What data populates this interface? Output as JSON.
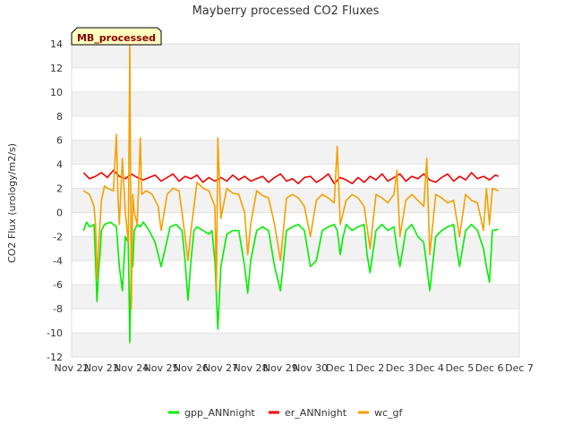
{
  "chart_data": {
    "type": "line",
    "title": "Mayberry processed CO2 Fluxes",
    "ylabel": "CO2 Flux (urology/m2/s)",
    "xlabel": "",
    "badge": "MB_processed",
    "ylim": [
      -12,
      14
    ],
    "yticks": [
      -12,
      -10,
      -8,
      -6,
      -4,
      -2,
      0,
      2,
      4,
      6,
      8,
      10,
      12,
      14
    ],
    "xlim": [
      0,
      15
    ],
    "xticks": [
      "Nov 22",
      "Nov 23",
      "Nov 24",
      "Nov 25",
      "Nov 26",
      "Nov 27",
      "Nov 28",
      "Nov 29",
      "Nov 30",
      "Dec 1",
      "Dec 2",
      "Dec 3",
      "Dec 4",
      "Dec 5",
      "Dec 6",
      "Dec 7"
    ],
    "x_units": "days since Nov 22",
    "grid": "horizontal bands",
    "legend_position": "bottom-center",
    "series": [
      {
        "name": "gpp_ANNnight",
        "color": "#00ee00",
        "x": [
          0.4,
          0.5,
          0.6,
          0.75,
          0.8,
          0.85,
          0.9,
          0.95,
          1.0,
          1.1,
          1.3,
          1.5,
          1.6,
          1.7,
          1.8,
          1.9,
          1.95,
          2.0,
          2.05,
          2.1,
          2.2,
          2.3,
          2.4,
          2.6,
          2.8,
          3.0,
          3.3,
          3.5,
          3.7,
          3.8,
          3.9,
          4.0,
          4.1,
          4.2,
          4.4,
          4.6,
          4.7,
          4.8,
          4.9,
          5.0,
          5.2,
          5.4,
          5.6,
          5.8,
          5.9,
          6.0,
          6.2,
          6.4,
          6.6,
          6.8,
          7.0,
          7.2,
          7.4,
          7.6,
          7.8,
          8.0,
          8.2,
          8.4,
          8.6,
          8.8,
          8.9,
          9.0,
          9.1,
          9.2,
          9.4,
          9.6,
          9.8,
          9.9,
          10.0,
          10.2,
          10.4,
          10.6,
          10.8,
          10.9,
          11.0,
          11.2,
          11.4,
          11.6,
          11.8,
          11.9,
          12.0,
          12.2,
          12.4,
          12.6,
          12.8,
          12.9,
          13.0,
          13.2,
          13.4,
          13.6,
          13.8,
          13.9,
          14.0,
          14.1,
          14.3
        ],
        "y": [
          -1.5,
          -0.8,
          -1.2,
          -1.0,
          -4.0,
          -7.4,
          -5.0,
          -3.5,
          -1.5,
          -1.0,
          -0.8,
          -1.2,
          -4.5,
          -6.5,
          -2.0,
          -2.5,
          -10.8,
          -3.5,
          -4.5,
          -1.5,
          -1.0,
          -1.2,
          -0.8,
          -1.5,
          -2.5,
          -4.5,
          -1.2,
          -1.0,
          -1.5,
          -4.0,
          -7.3,
          -4.0,
          -1.5,
          -1.2,
          -1.5,
          -1.8,
          -1.5,
          -4.0,
          -9.7,
          -4.5,
          -1.8,
          -1.5,
          -1.5,
          -4.5,
          -6.7,
          -4.0,
          -1.5,
          -1.2,
          -1.5,
          -4.5,
          -6.5,
          -1.5,
          -1.2,
          -1.0,
          -1.5,
          -4.5,
          -4.0,
          -1.5,
          -1.2,
          -1.0,
          -1.5,
          -3.5,
          -2.0,
          -1.0,
          -1.5,
          -1.2,
          -1.0,
          -3.5,
          -5.0,
          -1.5,
          -1.0,
          -1.5,
          -1.2,
          -3.0,
          -4.5,
          -1.5,
          -1.0,
          -2.0,
          -2.5,
          -4.5,
          -6.5,
          -2.0,
          -1.5,
          -1.2,
          -1.0,
          -3.0,
          -4.5,
          -1.5,
          -1.0,
          -1.5,
          -3.0,
          -4.5,
          -5.8,
          -1.5,
          -1.4
        ]
      },
      {
        "name": "er_ANNnight",
        "color": "#ee0000",
        "x": [
          0.4,
          0.6,
          0.8,
          1.0,
          1.2,
          1.4,
          1.6,
          1.8,
          2.0,
          2.2,
          2.4,
          2.6,
          2.8,
          3.0,
          3.2,
          3.4,
          3.6,
          3.8,
          4.0,
          4.2,
          4.4,
          4.6,
          4.8,
          5.0,
          5.2,
          5.4,
          5.6,
          5.8,
          6.0,
          6.2,
          6.4,
          6.6,
          6.8,
          7.0,
          7.2,
          7.4,
          7.6,
          7.8,
          8.0,
          8.2,
          8.4,
          8.6,
          8.8,
          9.0,
          9.2,
          9.4,
          9.6,
          9.8,
          10.0,
          10.2,
          10.4,
          10.6,
          10.8,
          11.0,
          11.2,
          11.4,
          11.6,
          11.8,
          12.0,
          12.2,
          12.4,
          12.6,
          12.8,
          13.0,
          13.2,
          13.4,
          13.6,
          13.8,
          14.0,
          14.2,
          14.3
        ],
        "y": [
          3.3,
          2.8,
          3.0,
          3.3,
          2.9,
          3.5,
          3.0,
          2.8,
          3.2,
          2.9,
          2.7,
          2.9,
          3.1,
          2.6,
          2.9,
          3.2,
          2.6,
          3.0,
          2.8,
          3.1,
          2.5,
          2.9,
          2.6,
          2.9,
          2.6,
          3.1,
          2.7,
          3.0,
          2.6,
          2.8,
          3.0,
          2.5,
          2.9,
          3.2,
          2.6,
          2.8,
          2.4,
          2.9,
          3.0,
          2.5,
          2.8,
          3.2,
          2.4,
          2.9,
          2.7,
          2.4,
          2.9,
          2.5,
          3.0,
          2.7,
          3.2,
          2.6,
          2.9,
          3.2,
          2.6,
          3.0,
          2.8,
          3.2,
          2.7,
          2.5,
          2.9,
          3.2,
          2.6,
          3.0,
          2.7,
          3.3,
          2.8,
          3.0,
          2.7,
          3.1,
          3.0
        ]
      },
      {
        "name": "wc_gf",
        "color": "#f5a000",
        "x": [
          0.4,
          0.6,
          0.75,
          0.8,
          0.85,
          0.9,
          1.0,
          1.1,
          1.2,
          1.4,
          1.5,
          1.55,
          1.6,
          1.7,
          1.8,
          1.9,
          1.95,
          2.0,
          2.05,
          2.1,
          2.2,
          2.3,
          2.35,
          2.5,
          2.7,
          2.9,
          3.0,
          3.2,
          3.4,
          3.6,
          3.7,
          3.8,
          3.9,
          4.0,
          4.2,
          4.4,
          4.6,
          4.8,
          4.85,
          4.9,
          5.0,
          5.2,
          5.4,
          5.6,
          5.8,
          5.9,
          6.0,
          6.2,
          6.4,
          6.6,
          6.8,
          7.0,
          7.2,
          7.4,
          7.6,
          7.8,
          8.0,
          8.2,
          8.4,
          8.6,
          8.8,
          8.9,
          9.0,
          9.2,
          9.4,
          9.6,
          9.8,
          10.0,
          10.2,
          10.4,
          10.6,
          10.8,
          10.9,
          11.0,
          11.2,
          11.4,
          11.6,
          11.8,
          11.9,
          12.0,
          12.2,
          12.4,
          12.6,
          12.8,
          13.0,
          13.2,
          13.4,
          13.6,
          13.8,
          13.9,
          14.0,
          14.1,
          14.3
        ],
        "y": [
          1.8,
          1.5,
          0.5,
          -1.0,
          -5.5,
          -3.0,
          1.0,
          2.2,
          2.0,
          1.8,
          6.5,
          1.5,
          -1.0,
          4.5,
          0.0,
          -2.5,
          14.0,
          -8.0,
          1.5,
          0.0,
          -1.0,
          6.2,
          1.5,
          1.8,
          1.5,
          0.5,
          -1.5,
          1.5,
          2.0,
          1.8,
          0.0,
          -2.0,
          -4.0,
          -1.5,
          2.5,
          2.0,
          1.8,
          0.5,
          -6.5,
          6.2,
          -0.5,
          2.0,
          1.6,
          1.5,
          0.0,
          -3.5,
          -1.0,
          1.8,
          1.4,
          1.2,
          -1.0,
          -4.0,
          1.2,
          1.5,
          1.2,
          0.5,
          -2.0,
          1.0,
          1.5,
          1.2,
          0.8,
          5.5,
          -1.0,
          1.0,
          1.5,
          1.2,
          0.5,
          -3.0,
          1.5,
          1.2,
          0.8,
          1.5,
          3.5,
          -2.0,
          1.0,
          1.5,
          1.0,
          0.5,
          4.5,
          -3.5,
          1.5,
          1.2,
          0.8,
          1.0,
          -2.0,
          1.5,
          1.0,
          0.8,
          -1.5,
          2.0,
          -1.0,
          2.0,
          1.8
        ]
      }
    ]
  }
}
